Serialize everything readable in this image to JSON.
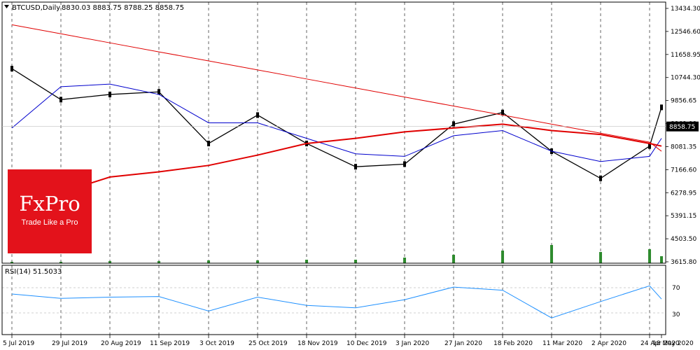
{
  "header": {
    "symbol": "BTCUSD,Daily",
    "ohlc": "8830.03 8883.75 8788.25 8858.75"
  },
  "brand": {
    "name": "FxPro",
    "tagline": "Trade Like a Pro",
    "color": "#e3121b"
  },
  "rsi": {
    "label": "RSI(14) 51.5033",
    "levels": [
      70,
      30
    ],
    "tick_labels": [
      "70",
      "30"
    ],
    "color": "#1e90ff"
  },
  "price_axis": {
    "ticks": [
      "13434.30",
      "12546.60",
      "11658.95",
      "10744.30",
      "9856.65",
      "8969.00",
      "8081.35",
      "7166.60",
      "6278.95",
      "5391.15",
      "4503.50",
      "3615.80"
    ],
    "current": "8858.75"
  },
  "date_axis": [
    "5 Jul 2019",
    "29 Jul 2019",
    "20 Aug 2019",
    "11 Sep 2019",
    "3 Oct 2019",
    "25 Oct 2019",
    "18 Nov 2019",
    "10 Dec 2019",
    "3 Jan 2020",
    "27 Jan 2020",
    "18 Feb 2020",
    "11 Mar 2020",
    "2 Apr 2020",
    "24 Apr 2020",
    "18 May 2020"
  ],
  "chart_data": {
    "type": "line",
    "title": "BTCUSD,Daily",
    "ylim": [
      3615.8,
      13434.3
    ],
    "grid": true,
    "series": [
      {
        "role": "close",
        "color": "#000000",
        "x": [
          "5 Jul 2019",
          "29 Jul 2019",
          "20 Aug 2019",
          "11 Sep 2019",
          "3 Oct 2019",
          "25 Oct 2019",
          "18 Nov 2019",
          "10 Dec 2019",
          "3 Jan 2020",
          "27 Jan 2020",
          "18 Feb 2020",
          "11 Mar 2020",
          "2 Apr 2020",
          "24 Apr 2020",
          "18 May 2020"
        ],
        "values": [
          11100,
          9900,
          10100,
          10200,
          8200,
          9300,
          8200,
          7300,
          7400,
          8950,
          9400,
          7900,
          6850,
          8100,
          9600
        ]
      },
      {
        "role": "moving-average-fast",
        "color": "#0000cd",
        "values": [
          8800,
          10400,
          10500,
          10100,
          9000,
          9000,
          8400,
          7800,
          7700,
          8500,
          8700,
          7900,
          7500,
          7700,
          8400
        ]
      },
      {
        "role": "moving-average-slow",
        "color": "#e00000",
        "values": [
          5550,
          6300,
          6900,
          7100,
          7350,
          7750,
          8200,
          8400,
          8650,
          8800,
          8950,
          8700,
          8550,
          8200,
          8100
        ]
      },
      {
        "role": "trendline",
        "color": "#e00000",
        "values": [
          12800,
          12450,
          12100,
          11750,
          11400,
          11050,
          10700,
          10350,
          10000,
          9650,
          9300,
          8950,
          8600,
          8250,
          7900
        ]
      },
      {
        "role": "rsi",
        "color": "#1e90ff",
        "values": [
          60,
          53,
          55,
          56,
          33,
          55,
          42,
          38,
          51,
          71,
          66,
          22,
          48,
          73,
          52
        ]
      }
    ],
    "volume": [
      2,
      2,
      3,
      3,
      4,
      4,
      5,
      5,
      8,
      12,
      18,
      26,
      16,
      20,
      10
    ]
  }
}
